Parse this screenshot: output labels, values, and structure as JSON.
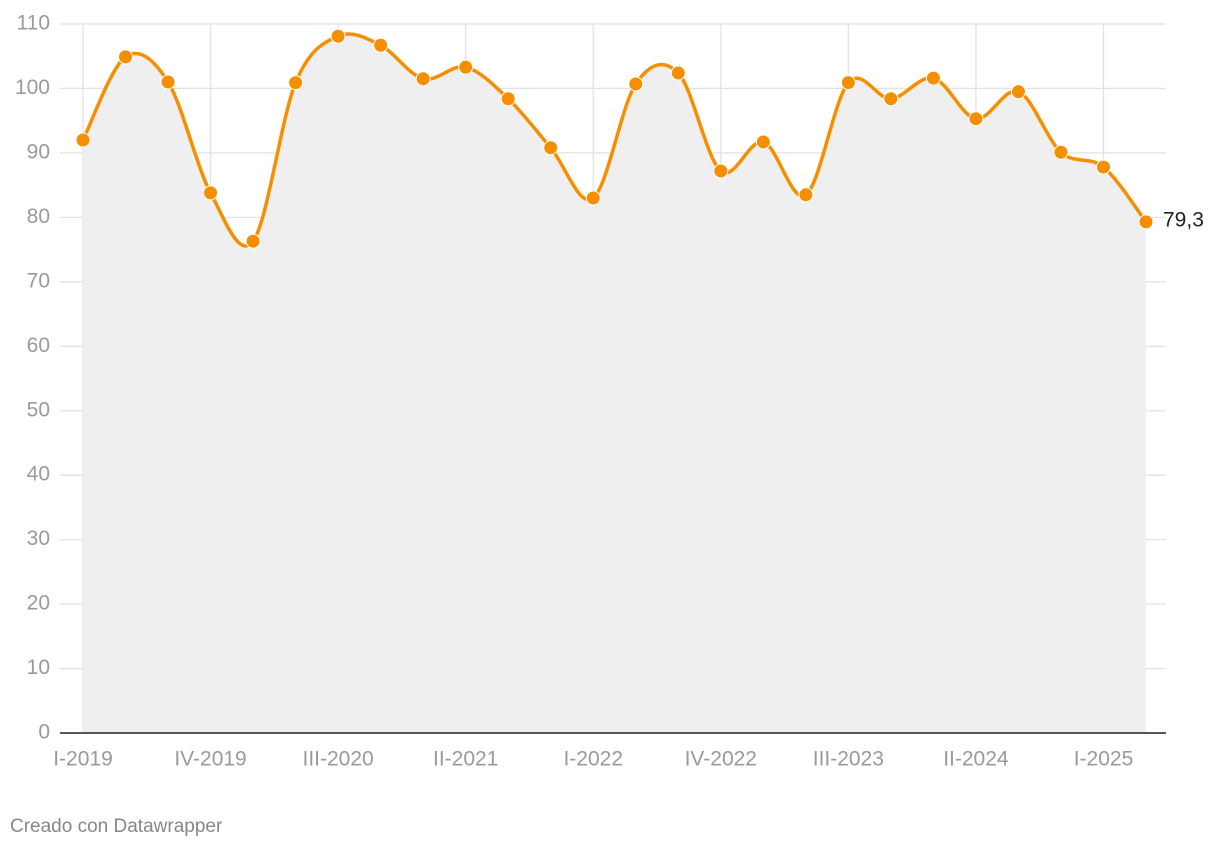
{
  "chart_data": {
    "type": "line",
    "categories": [
      "I-2019",
      null,
      null,
      "IV-2019",
      null,
      null,
      "III-2020",
      null,
      null,
      "II-2021",
      null,
      null,
      "I-2022",
      null,
      null,
      "IV-2022",
      null,
      null,
      "III-2023",
      null,
      null,
      "II-2024",
      null,
      null,
      "I-2025",
      null
    ],
    "series": [
      {
        "color": "#f58f00",
        "fill": "#efefef",
        "values": [
          92.0,
          104.9,
          101.0,
          83.8,
          76.3,
          100.9,
          108.1,
          106.7,
          101.5,
          103.3,
          98.4,
          90.8,
          83.0,
          100.7,
          102.4,
          87.2,
          91.7,
          83.5,
          100.9,
          98.4,
          101.6,
          95.3,
          99.5,
          90.1,
          87.8,
          79.3
        ],
        "value_labels": [
          null,
          null,
          null,
          null,
          null,
          null,
          null,
          null,
          null,
          null,
          null,
          null,
          null,
          null,
          null,
          null,
          null,
          null,
          null,
          null,
          null,
          null,
          null,
          null,
          null,
          "79,3"
        ]
      }
    ],
    "ylim": [
      0,
      110
    ],
    "yticks": [
      0,
      10,
      20,
      30,
      40,
      50,
      60,
      70,
      80,
      90,
      100,
      110
    ],
    "grid": true,
    "footer": "Creado con Datawrapper"
  }
}
